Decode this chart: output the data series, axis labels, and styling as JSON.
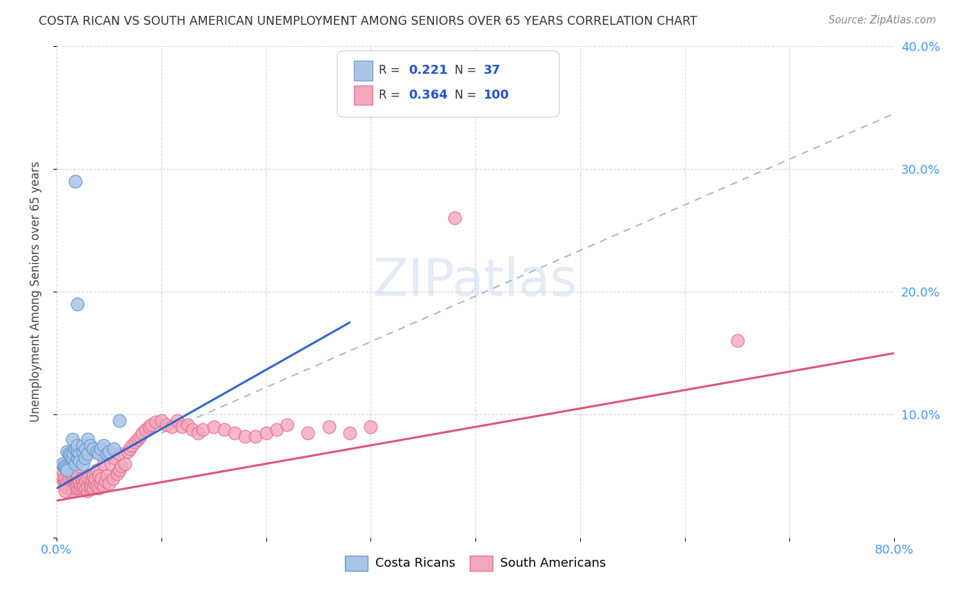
{
  "title": "COSTA RICAN VS SOUTH AMERICAN UNEMPLOYMENT AMONG SENIORS OVER 65 YEARS CORRELATION CHART",
  "source": "Source: ZipAtlas.com",
  "ylabel": "Unemployment Among Seniors over 65 years",
  "xlim": [
    0.0,
    0.8
  ],
  "ylim": [
    0.0,
    0.4
  ],
  "xtick_positions": [
    0.0,
    0.1,
    0.2,
    0.3,
    0.4,
    0.5,
    0.6,
    0.7,
    0.8
  ],
  "xticklabels": [
    "0.0%",
    "",
    "",
    "",
    "",
    "",
    "",
    "",
    "80.0%"
  ],
  "ytick_positions": [
    0.0,
    0.1,
    0.2,
    0.3,
    0.4
  ],
  "yticklabels_right": [
    "",
    "10.0%",
    "20.0%",
    "30.0%",
    "40.0%"
  ],
  "cr_color": "#aac4e8",
  "sa_color": "#f5a8bc",
  "cr_edge": "#6699cc",
  "sa_edge": "#e07090",
  "cr_R": "0.221",
  "cr_N": "37",
  "sa_R": "0.364",
  "sa_N": "100",
  "watermark": "ZIPatlas",
  "legend_color": "#2255cc",
  "cr_line_color": "#3366cc",
  "sa_line_color": "#dd5577",
  "dashed_line_color": "#aabbcc",
  "background_color": "#ffffff",
  "cr_line_x": [
    0.0,
    0.28
  ],
  "cr_line_y": [
    0.04,
    0.175
  ],
  "sa_line_x": [
    0.0,
    0.8
  ],
  "sa_line_y": [
    0.03,
    0.15
  ],
  "dash_line_x": [
    0.1,
    0.8
  ],
  "dash_line_y": [
    0.085,
    0.345
  ],
  "cr_x": [
    0.005,
    0.007,
    0.008,
    0.009,
    0.01,
    0.01,
    0.012,
    0.013,
    0.015,
    0.015,
    0.016,
    0.018,
    0.018,
    0.02,
    0.02,
    0.02,
    0.022,
    0.022,
    0.025,
    0.025,
    0.025,
    0.027,
    0.028,
    0.03,
    0.03,
    0.032,
    0.035,
    0.038,
    0.04,
    0.042,
    0.045,
    0.048,
    0.05,
    0.055,
    0.06,
    0.02,
    0.018
  ],
  "cr_y": [
    0.06,
    0.058,
    0.057,
    0.056,
    0.055,
    0.07,
    0.068,
    0.067,
    0.065,
    0.08,
    0.068,
    0.072,
    0.06,
    0.065,
    0.07,
    0.075,
    0.068,
    0.062,
    0.07,
    0.075,
    0.06,
    0.065,
    0.072,
    0.068,
    0.08,
    0.075,
    0.072,
    0.07,
    0.068,
    0.072,
    0.075,
    0.068,
    0.07,
    0.072,
    0.095,
    0.19,
    0.29
  ],
  "sa_x": [
    0.005,
    0.005,
    0.005,
    0.007,
    0.008,
    0.008,
    0.009,
    0.01,
    0.01,
    0.01,
    0.012,
    0.012,
    0.013,
    0.014,
    0.015,
    0.015,
    0.015,
    0.016,
    0.017,
    0.018,
    0.018,
    0.02,
    0.02,
    0.02,
    0.02,
    0.022,
    0.022,
    0.023,
    0.024,
    0.025,
    0.025,
    0.026,
    0.027,
    0.028,
    0.028,
    0.03,
    0.03,
    0.03,
    0.032,
    0.032,
    0.033,
    0.034,
    0.035,
    0.035,
    0.036,
    0.037,
    0.038,
    0.038,
    0.04,
    0.04,
    0.042,
    0.043,
    0.045,
    0.045,
    0.047,
    0.048,
    0.05,
    0.052,
    0.054,
    0.055,
    0.058,
    0.06,
    0.06,
    0.062,
    0.065,
    0.068,
    0.07,
    0.072,
    0.075,
    0.078,
    0.08,
    0.082,
    0.085,
    0.088,
    0.09,
    0.095,
    0.1,
    0.105,
    0.11,
    0.115,
    0.12,
    0.125,
    0.13,
    0.135,
    0.14,
    0.15,
    0.16,
    0.17,
    0.18,
    0.19,
    0.2,
    0.21,
    0.22,
    0.24,
    0.26,
    0.28,
    0.3,
    0.38,
    0.65,
    0.008
  ],
  "sa_y": [
    0.048,
    0.05,
    0.055,
    0.045,
    0.042,
    0.048,
    0.044,
    0.04,
    0.045,
    0.055,
    0.04,
    0.048,
    0.042,
    0.046,
    0.038,
    0.044,
    0.05,
    0.04,
    0.044,
    0.042,
    0.048,
    0.04,
    0.044,
    0.048,
    0.052,
    0.04,
    0.046,
    0.042,
    0.048,
    0.04,
    0.046,
    0.042,
    0.048,
    0.04,
    0.046,
    0.038,
    0.042,
    0.048,
    0.04,
    0.046,
    0.042,
    0.046,
    0.04,
    0.05,
    0.044,
    0.048,
    0.042,
    0.055,
    0.04,
    0.05,
    0.044,
    0.048,
    0.042,
    0.06,
    0.046,
    0.05,
    0.044,
    0.06,
    0.048,
    0.065,
    0.052,
    0.055,
    0.068,
    0.058,
    0.06,
    0.07,
    0.072,
    0.075,
    0.078,
    0.08,
    0.082,
    0.085,
    0.088,
    0.09,
    0.092,
    0.094,
    0.095,
    0.092,
    0.09,
    0.095,
    0.09,
    0.092,
    0.088,
    0.085,
    0.088,
    0.09,
    0.088,
    0.085,
    0.082,
    0.082,
    0.085,
    0.088,
    0.092,
    0.085,
    0.09,
    0.085,
    0.09,
    0.26,
    0.16,
    0.038
  ]
}
